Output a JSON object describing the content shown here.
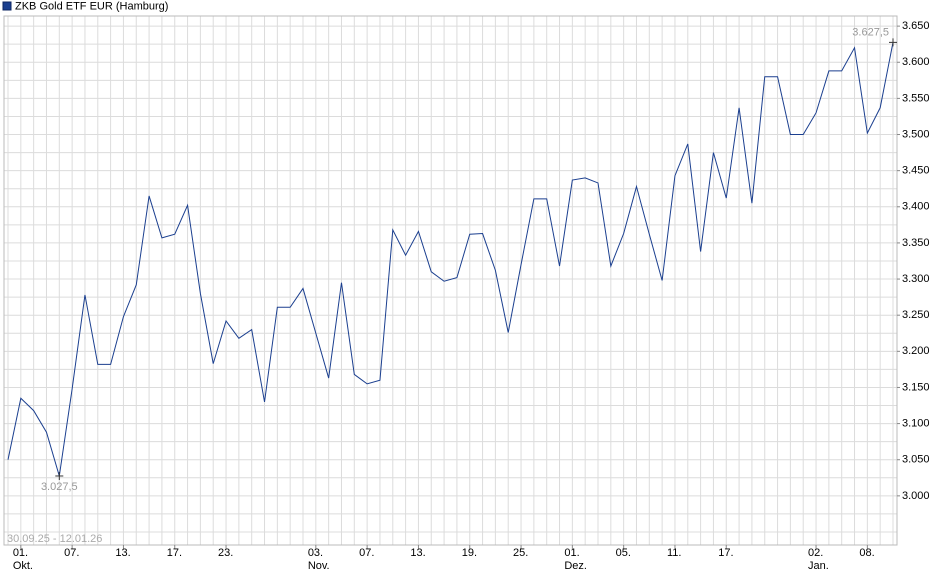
{
  "chart_data": {
    "type": "line",
    "legend": "ZKB Gold ETF EUR (Hamburg)",
    "date_range": "30.09.25 - 12.01.26",
    "categories": [
      null,
      "01.",
      null,
      null,
      null,
      "07.",
      null,
      null,
      null,
      "13.",
      null,
      null,
      null,
      "17.",
      null,
      null,
      null,
      "23.",
      null,
      null,
      null,
      null,
      null,
      null,
      "03.",
      null,
      null,
      null,
      "07.",
      null,
      null,
      null,
      "13.",
      null,
      null,
      null,
      "19.",
      null,
      null,
      null,
      "25.",
      null,
      null,
      null,
      "01.",
      null,
      null,
      null,
      "05.",
      null,
      null,
      null,
      "11.",
      null,
      null,
      null,
      "17.",
      null,
      null,
      null,
      null,
      null,
      null,
      "02.",
      null,
      null,
      null,
      "08.",
      null,
      null
    ],
    "months": [
      null,
      "Okt.",
      null,
      null,
      null,
      null,
      null,
      null,
      null,
      null,
      null,
      null,
      null,
      null,
      null,
      null,
      null,
      null,
      null,
      null,
      null,
      null,
      null,
      null,
      "Nov.",
      null,
      null,
      null,
      null,
      null,
      null,
      null,
      null,
      null,
      null,
      null,
      null,
      null,
      null,
      null,
      null,
      null,
      null,
      null,
      "Dez.",
      null,
      null,
      null,
      null,
      null,
      null,
      null,
      null,
      null,
      null,
      null,
      null,
      null,
      null,
      null,
      null,
      null,
      null,
      "Jan.",
      null,
      null,
      null,
      null,
      null,
      null
    ],
    "series": [
      {
        "name": "ZKB Gold ETF EUR (Hamburg)",
        "color": "#1b3f8f",
        "values": [
          3050,
          3135,
          3118,
          3088,
          3027.5,
          3148,
          3278,
          3182,
          3182,
          3248,
          3292,
          3415,
          3357,
          3362,
          3402,
          3280,
          3183,
          3242,
          3218,
          3230,
          3130,
          3261,
          3261,
          3287,
          3225,
          3163,
          3295,
          3168,
          3155,
          3160,
          3368,
          3333,
          3366,
          3310,
          3297,
          3302,
          3362,
          3363,
          3312,
          3226,
          3320,
          3411,
          3411,
          3318,
          3437,
          3440,
          3433,
          3318,
          3363,
          3428,
          3362,
          3298,
          3443,
          3487,
          3338,
          3475,
          3412,
          3537,
          3405,
          3580,
          3580,
          3500,
          3500,
          3530,
          3588,
          3588,
          3620,
          3502,
          3537,
          3627.5
        ],
        "value_labels": [
          null,
          null,
          null,
          null,
          "3.027,5",
          null,
          null,
          null,
          null,
          null,
          null,
          null,
          null,
          null,
          null,
          null,
          null,
          null,
          null,
          null,
          null,
          null,
          null,
          null,
          null,
          null,
          null,
          null,
          null,
          null,
          null,
          null,
          null,
          null,
          null,
          null,
          null,
          null,
          null,
          null,
          null,
          null,
          null,
          null,
          null,
          null,
          null,
          null,
          null,
          null,
          null,
          null,
          null,
          null,
          null,
          null,
          null,
          null,
          null,
          null,
          null,
          null,
          null,
          null,
          null,
          null,
          null,
          null,
          null,
          "3.627,5"
        ]
      }
    ],
    "ylim": [
      2932,
      3664
    ],
    "yticks": [
      {
        "value": 3000,
        "label": "3.000"
      },
      {
        "value": 3050,
        "label": "3.050"
      },
      {
        "value": 3100,
        "label": "3.100"
      },
      {
        "value": 3150,
        "label": "3.150"
      },
      {
        "value": 3200,
        "label": "3.200"
      },
      {
        "value": 3250,
        "label": "3.250"
      },
      {
        "value": 3300,
        "label": "3.300"
      },
      {
        "value": 3350,
        "label": "3.350"
      },
      {
        "value": 3400,
        "label": "3.400"
      },
      {
        "value": 3450,
        "label": "3.450"
      },
      {
        "value": 3500,
        "label": "3.500"
      },
      {
        "value": 3550,
        "label": "3.550"
      },
      {
        "value": 3600,
        "label": "3.600"
      },
      {
        "value": 3650,
        "label": "3.650"
      }
    ],
    "minor_yticks": [
      2950,
      2975,
      3025,
      3075,
      3125,
      3175,
      3225,
      3275,
      3325,
      3375,
      3425,
      3475,
      3525,
      3575,
      3625
    ],
    "grid": true
  }
}
